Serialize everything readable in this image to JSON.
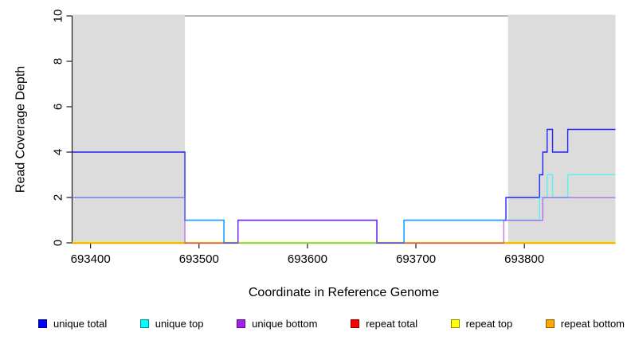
{
  "figure": {
    "background": "#ffffff",
    "plot_band_color": "#DCDCDC",
    "axis_color": "#1a1a1a",
    "box_color": "#8c8c8c"
  },
  "chart_data": {
    "type": "line",
    "line_style": "step",
    "title": "",
    "xlabel": "Coordinate in Reference Genome",
    "ylabel": "Read Coverage Depth",
    "xlim": [
      693383,
      693884
    ],
    "ylim": [
      0,
      10
    ],
    "x_ticks": [
      693400,
      693500,
      693600,
      693700,
      693800
    ],
    "y_ticks": [
      0,
      2,
      4,
      6,
      8,
      10
    ],
    "grid": false,
    "legend_position": "bottom",
    "shaded_regions": [
      {
        "name": "repeat-region-left",
        "x0": 693383,
        "x1": 693487
      },
      {
        "name": "repeat-region-right",
        "x0": 693785,
        "x1": 693884
      }
    ],
    "series": [
      {
        "name": "unique total",
        "color": "#0000FF",
        "steps": [
          [
            693383,
            4
          ],
          [
            693487,
            1
          ],
          [
            693523,
            0
          ],
          [
            693536,
            1
          ],
          [
            693664,
            0
          ],
          [
            693689,
            1
          ],
          [
            693783,
            2
          ],
          [
            693814,
            3
          ],
          [
            693817,
            4
          ],
          [
            693821,
            5
          ],
          [
            693826,
            4
          ],
          [
            693840,
            5
          ],
          [
            693884,
            5
          ]
        ]
      },
      {
        "name": "unique top",
        "color": "#00FFFF",
        "steps": [
          [
            693383,
            2
          ],
          [
            693487,
            1
          ],
          [
            693523,
            0
          ],
          [
            693689,
            1
          ],
          [
            693814,
            2
          ],
          [
            693821,
            3
          ],
          [
            693826,
            2
          ],
          [
            693840,
            3
          ],
          [
            693884,
            3
          ]
        ]
      },
      {
        "name": "unique bottom",
        "color": "#A020F0",
        "steps": [
          [
            693383,
            2
          ],
          [
            693487,
            0
          ],
          [
            693536,
            1
          ],
          [
            693664,
            0
          ],
          [
            693781,
            1
          ],
          [
            693817,
            2
          ],
          [
            693884,
            2
          ]
        ]
      },
      {
        "name": "repeat total",
        "color": "#FF0000",
        "steps": [
          [
            693383,
            0
          ],
          [
            693884,
            0
          ]
        ]
      },
      {
        "name": "repeat top",
        "color": "#FFFF00",
        "steps": [
          [
            693383,
            0
          ],
          [
            693884,
            0
          ]
        ]
      },
      {
        "name": "repeat bottom",
        "color": "#FFA500",
        "steps": [
          [
            693383,
            0
          ],
          [
            693884,
            0
          ]
        ]
      }
    ]
  },
  "axes_text": {
    "x_title": "Coordinate in Reference Genome",
    "y_title": "Read Coverage Depth",
    "x_tick_labels": [
      "693400",
      "693500",
      "693600",
      "693700",
      "693800"
    ],
    "y_tick_labels": [
      "0",
      "2",
      "4",
      "6",
      "8",
      "10"
    ]
  },
  "legend": {
    "items": [
      {
        "label": "unique total",
        "color": "#0000FF"
      },
      {
        "label": "unique top",
        "color": "#00FFFF"
      },
      {
        "label": "unique bottom",
        "color": "#A020F0"
      },
      {
        "label": "repeat total",
        "color": "#FF0000"
      },
      {
        "label": "repeat top",
        "color": "#FFFF00"
      },
      {
        "label": "repeat bottom",
        "color": "#FFA500"
      }
    ]
  }
}
